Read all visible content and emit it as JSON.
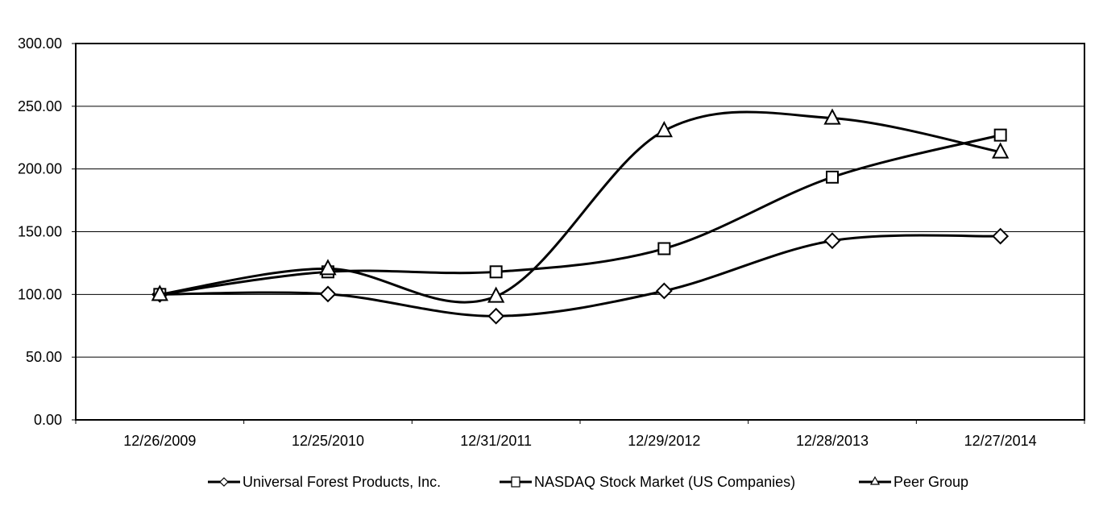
{
  "chart_data": {
    "type": "line",
    "title": "",
    "xlabel": "",
    "ylabel": "",
    "ylim": [
      0,
      300
    ],
    "yticks": [
      "0.00",
      "50.00",
      "100.00",
      "150.00",
      "200.00",
      "250.00",
      "300.00"
    ],
    "ytick_values": [
      0,
      50,
      100,
      150,
      200,
      250,
      300
    ],
    "categories": [
      "12/26/2009",
      "12/25/2010",
      "12/31/2011",
      "12/29/2012",
      "12/28/2013",
      "12/27/2014"
    ],
    "grid": true,
    "legend_position": "bottom",
    "series": [
      {
        "name": "Universal Forest Products, Inc.",
        "marker": "diamond",
        "values": [
          100.0,
          100.3,
          82.7,
          102.8,
          142.8,
          146.4
        ]
      },
      {
        "name": "NASDAQ Stock Market (US Companies)",
        "marker": "square",
        "values": [
          100.0,
          118.0,
          118.0,
          136.5,
          193.5,
          227.0
        ]
      },
      {
        "name": "Peer Group",
        "marker": "triangle",
        "values": [
          100.0,
          120.5,
          98.5,
          230.5,
          240.5,
          213.5
        ]
      }
    ],
    "line_color": "#000000"
  }
}
